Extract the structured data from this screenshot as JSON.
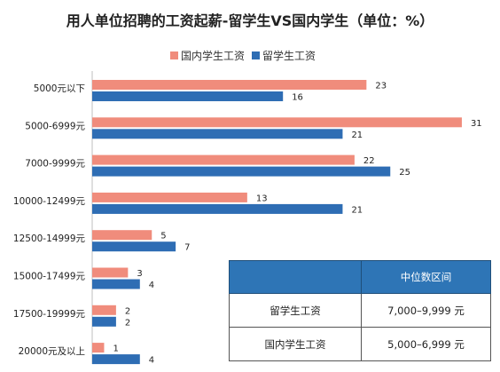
{
  "title": "用人单位招聘的工资起薪-留学生VS国内学生（单位：%）",
  "colors": {
    "domestic": "#f08c7c",
    "overseas": "#2e6db4",
    "table_header": "#2e75b6"
  },
  "legend": [
    {
      "label": "国内学生工资",
      "color": "#f08c7c"
    },
    {
      "label": "留学生工资",
      "color": "#2e6db4"
    }
  ],
  "chart_data": {
    "type": "bar",
    "orientation": "horizontal",
    "title": "用人单位招聘的工资起薪-留学生VS国内学生（单位：%）",
    "categories": [
      "5000元以下",
      "5000-6999元",
      "7000-9999元",
      "10000-12499元",
      "12500-14999元",
      "15000-17499元",
      "17500-19999元",
      "20000元及以上"
    ],
    "series": [
      {
        "name": "国内学生工资",
        "color": "#f08c7c",
        "values": [
          23,
          31,
          22,
          13,
          5,
          3,
          2,
          1
        ]
      },
      {
        "name": "留学生工资",
        "color": "#2e6db4",
        "values": [
          16,
          21,
          25,
          21,
          7,
          4,
          2,
          4
        ]
      }
    ],
    "xlim": [
      0,
      31
    ],
    "grid": false,
    "legend_position": "top"
  },
  "table": {
    "header": [
      "",
      "中位数区间"
    ],
    "rows": [
      [
        "留学生工资",
        "7,000–9,999 元"
      ],
      [
        "国内学生工资",
        "5,000–6,999 元"
      ]
    ]
  }
}
